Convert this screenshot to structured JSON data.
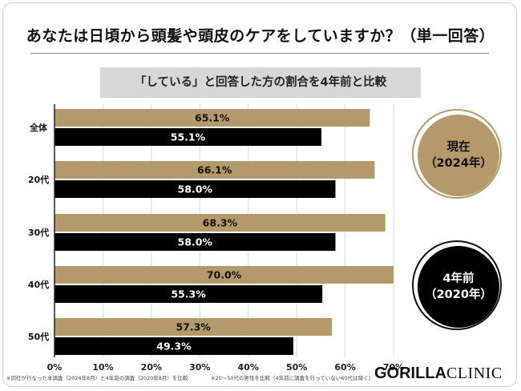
{
  "title": "あなたは日頃から頭髪や頭皮のケアをしていますか？（単一回答）",
  "subtitle": "「している」と回答した方の割合を4年前と比較",
  "colors": {
    "current": "#b49a6a",
    "previous": "#000000",
    "grid": "#d9d9d9",
    "axis": "#222222"
  },
  "legend": {
    "current": {
      "line1": "現在",
      "line2": "（2024年）"
    },
    "previous": {
      "line1": "4年前",
      "line2": "（2020年）"
    }
  },
  "chart_data": {
    "type": "bar",
    "orientation": "horizontal",
    "categories": [
      "全体",
      "20代",
      "30代",
      "40代",
      "50代"
    ],
    "series": [
      {
        "name": "現在（2024年）",
        "values": [
          65.1,
          66.1,
          68.3,
          70.0,
          57.3
        ],
        "labels": [
          "65.1%",
          "66.1%",
          "68.3%",
          "70.0%",
          "57.3%"
        ]
      },
      {
        "name": "4年前（2020年）",
        "values": [
          55.1,
          58.0,
          58.0,
          55.3,
          49.3
        ],
        "labels": [
          "55.1%",
          "58.0%",
          "58.0%",
          "55.3%",
          "49.3%"
        ]
      }
    ],
    "xlim": [
      0,
      70
    ],
    "xticks": [
      "0%",
      "10%",
      "20%",
      "30%",
      "40%",
      "50%",
      "60%",
      "70%"
    ],
    "grid": true,
    "legend_position": "right"
  },
  "footnotes": {
    "left": "※同社が行なった本調査（2024年8月）と4年前の調査（2020年8月）を比較",
    "right": "※20〜50代の男性を比較（4年前に調査を行っていない60代は除く）"
  },
  "logo": {
    "bold": "GORILLA",
    "light": "CLINIC"
  }
}
